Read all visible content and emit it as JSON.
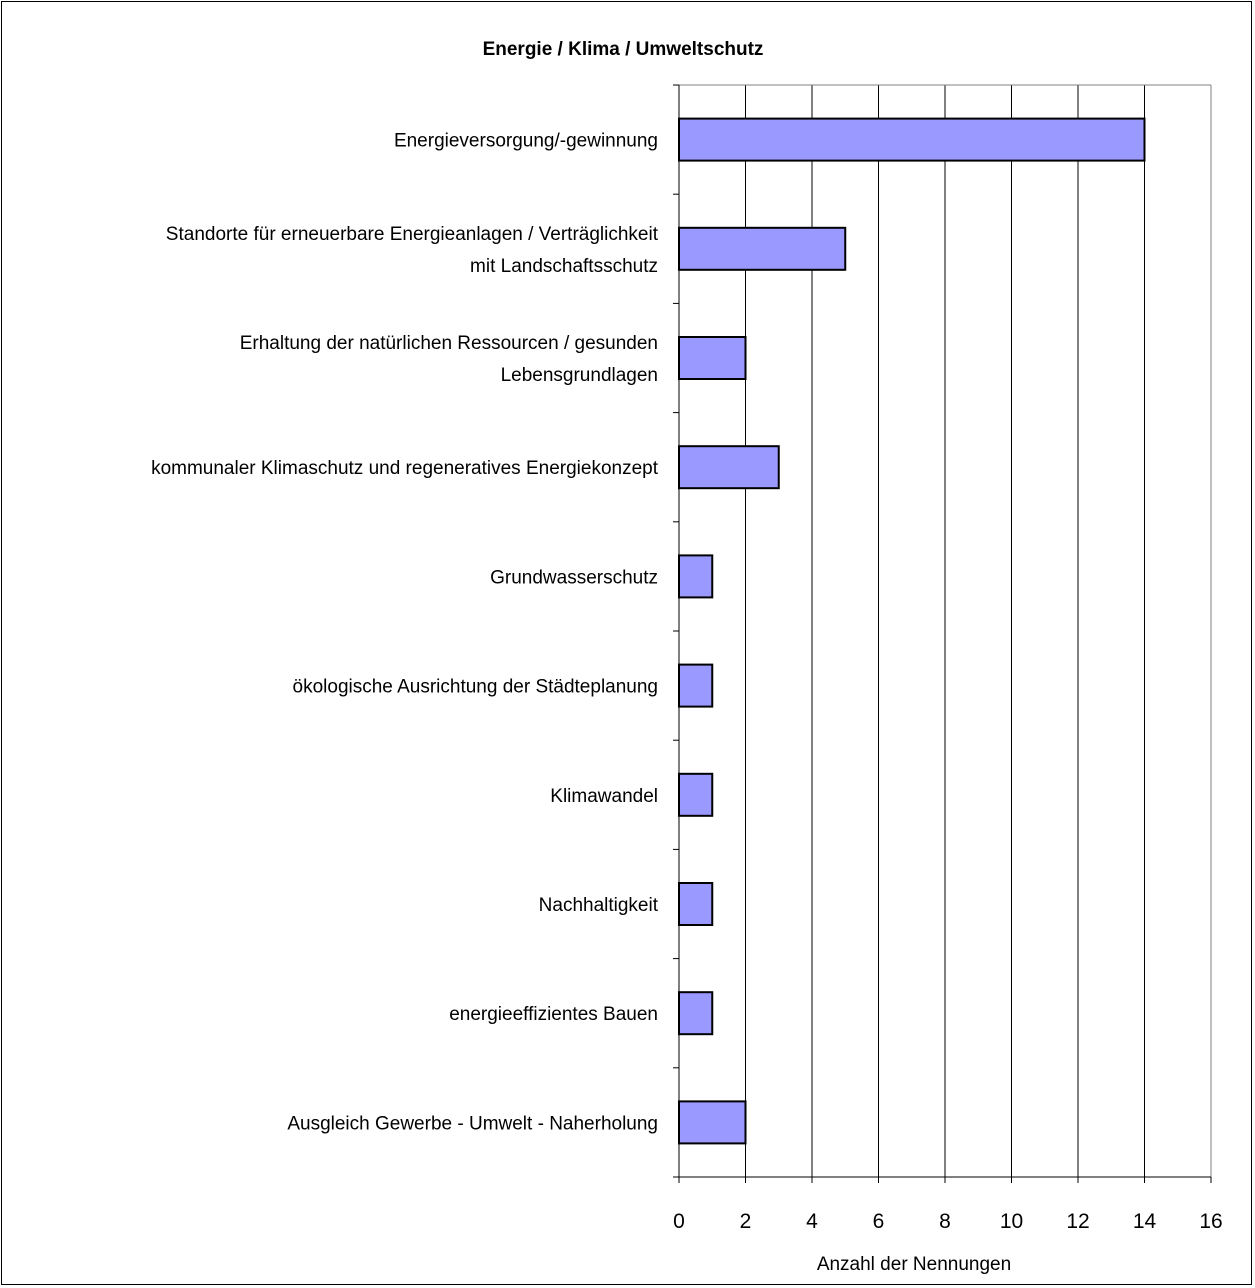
{
  "chart_data": {
    "type": "bar",
    "orientation": "horizontal",
    "title": "Energie / Klima / Umweltschutz",
    "xlabel": "Anzahl der Nennungen",
    "ylabel": "",
    "xlim": [
      0,
      16
    ],
    "xticks": [
      "0",
      "2",
      "4",
      "6",
      "8",
      "10",
      "12",
      "14",
      "16"
    ],
    "grid": "vertical",
    "bar_color": "#9999ff",
    "categories": [
      [
        "Energieversorgung/-gewinnung"
      ],
      [
        "Standorte für erneuerbare Energieanlagen / Verträglichkeit",
        "mit Landschaftsschutz"
      ],
      [
        "Erhaltung der natürlichen Ressourcen / gesunden",
        "Lebensgrundlagen"
      ],
      [
        "kommunaler Klimaschutz und regeneratives Energiekonzept"
      ],
      [
        "Grundwasserschutz"
      ],
      [
        "ökologische Ausrichtung der Städteplanung"
      ],
      [
        "Klimawandel"
      ],
      [
        "Nachhaltigkeit"
      ],
      [
        "energieeffizientes Bauen"
      ],
      [
        "Ausgleich Gewerbe - Umwelt - Naherholung"
      ]
    ],
    "values": [
      14,
      5,
      2,
      3,
      1,
      1,
      1,
      1,
      1,
      2
    ]
  }
}
